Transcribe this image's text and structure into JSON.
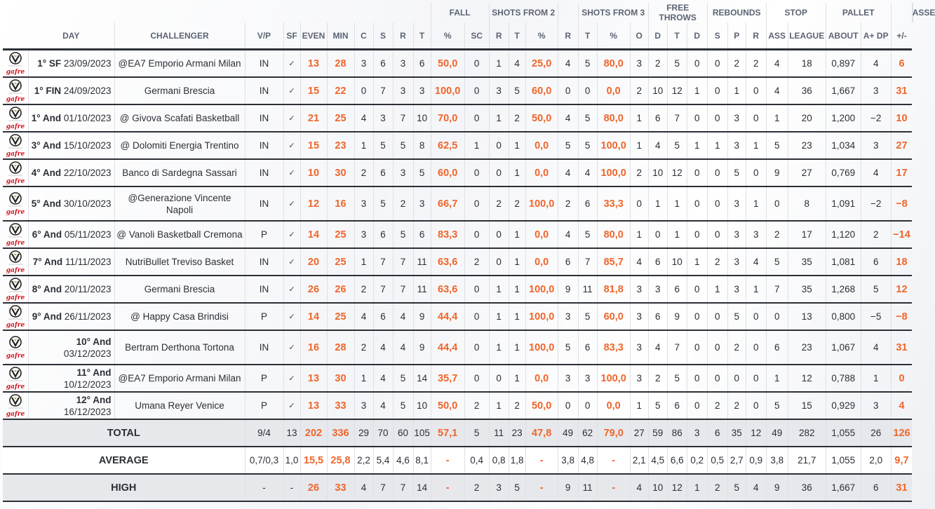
{
  "colors": {
    "accent": "#f0652a",
    "text": "#2b2f36",
    "header": "#5b6473",
    "footer_bg": "#e6e8ec"
  },
  "header": {
    "groups": [
      {
        "label": "",
        "span": 11
      },
      {
        "label": "FALL",
        "span": 2
      },
      {
        "label": "SHOTS FROM 2",
        "span": 3
      },
      {
        "label": "",
        "span": 1
      },
      {
        "label": "SHOTS FROM 3",
        "span": 3
      },
      {
        "label": "FREE THROWS",
        "span": 3
      },
      {
        "label": "REBOUNDS",
        "span": 3
      },
      {
        "label": "STOP",
        "span": 2
      },
      {
        "label": "PALLET",
        "span": 2
      },
      {
        "label": "",
        "span": 1
      },
      {
        "label": "ASSESSMENT",
        "span": 2
      },
      {
        "label": "",
        "span": 2
      }
    ],
    "columns": [
      "",
      "DAY",
      "CHALLENGER",
      "V/P",
      "SF",
      "EVEN",
      "MIN",
      "C",
      "S",
      "R",
      "T",
      "%",
      "SC",
      "R",
      "T",
      "%",
      "R",
      "T",
      "%",
      "O",
      "D",
      "T",
      "D",
      "S",
      "P",
      "R",
      "ASS",
      "LEAGUE",
      "ABOUT",
      "A+ DP",
      "+/-"
    ]
  },
  "logo_icon": "virtus-segafredo-logo",
  "rows": [
    {
      "day": "1° SF",
      "date": "23/09/2023",
      "challenger": "@EA7 Emporio Armani Milan",
      "vp": "IN",
      "sf": "✓",
      "stats": [
        "13",
        "28",
        "3",
        "6",
        "3",
        "6",
        "50,0",
        "0",
        "1",
        "4",
        "25,0",
        "4",
        "5",
        "80,0",
        "3",
        "2",
        "5",
        "0",
        "0",
        "2",
        "2",
        "4",
        "18",
        "0,897",
        "4",
        "6"
      ]
    },
    {
      "day": "1° FIN",
      "date": "24/09/2023",
      "challenger": "Germani Brescia",
      "vp": "IN",
      "sf": "✓",
      "stats": [
        "15",
        "22",
        "0",
        "7",
        "3",
        "3",
        "100,0",
        "0",
        "3",
        "5",
        "60,0",
        "0",
        "0",
        "0,0",
        "2",
        "10",
        "12",
        "1",
        "0",
        "1",
        "0",
        "4",
        "36",
        "1,667",
        "3",
        "31"
      ]
    },
    {
      "day": "1° And",
      "date": "01/10/2023",
      "challenger": "@ Givova Scafati Basketball",
      "vp": "IN",
      "sf": "✓",
      "stats": [
        "21",
        "25",
        "4",
        "3",
        "7",
        "10",
        "70,0",
        "0",
        "1",
        "2",
        "50,0",
        "4",
        "5",
        "80,0",
        "1",
        "6",
        "7",
        "0",
        "0",
        "3",
        "0",
        "1",
        "20",
        "1,200",
        "−2",
        "10"
      ]
    },
    {
      "day": "3° And",
      "date": "15/10/2023",
      "challenger": "@ Dolomiti Energia Trentino",
      "vp": "IN",
      "sf": "✓",
      "stats": [
        "15",
        "23",
        "1",
        "5",
        "5",
        "8",
        "62,5",
        "1",
        "0",
        "1",
        "0,0",
        "5",
        "5",
        "100,0",
        "1",
        "4",
        "5",
        "1",
        "1",
        "3",
        "1",
        "5",
        "23",
        "1,034",
        "3",
        "27"
      ]
    },
    {
      "day": "4° And",
      "date": "22/10/2023",
      "challenger": "Banco di Sardegna Sassari",
      "vp": "IN",
      "sf": "✓",
      "stats": [
        "10",
        "30",
        "2",
        "6",
        "3",
        "5",
        "60,0",
        "0",
        "0",
        "1",
        "0,0",
        "4",
        "4",
        "100,0",
        "2",
        "10",
        "12",
        "0",
        "0",
        "5",
        "0",
        "9",
        "27",
        "0,769",
        "4",
        "17"
      ]
    },
    {
      "day": "5° And",
      "date": "30/10/2023",
      "challenger": "@Generazione Vincente Napoli",
      "vp": "IN",
      "sf": "✓",
      "tall": true,
      "stats": [
        "12",
        "16",
        "3",
        "5",
        "2",
        "3",
        "66,7",
        "0",
        "2",
        "2",
        "100,0",
        "2",
        "6",
        "33,3",
        "0",
        "1",
        "1",
        "0",
        "0",
        "3",
        "1",
        "0",
        "8",
        "1,091",
        "−2",
        "−8"
      ]
    },
    {
      "day": "6° And",
      "date": "05/11/2023",
      "challenger": "@ Vanoli Basketball Cremona",
      "vp": "P",
      "sf": "✓",
      "stats": [
        "14",
        "25",
        "3",
        "6",
        "5",
        "6",
        "83,3",
        "0",
        "0",
        "1",
        "0,0",
        "4",
        "5",
        "80,0",
        "1",
        "0",
        "1",
        "0",
        "0",
        "3",
        "3",
        "2",
        "17",
        "1,120",
        "2",
        "−14"
      ]
    },
    {
      "day": "7° And",
      "date": "11/11/2023",
      "challenger": "NutriBullet Treviso Basket",
      "vp": "IN",
      "sf": "✓",
      "stats": [
        "20",
        "25",
        "1",
        "7",
        "7",
        "11",
        "63,6",
        "2",
        "0",
        "1",
        "0,0",
        "6",
        "7",
        "85,7",
        "4",
        "6",
        "10",
        "1",
        "2",
        "3",
        "4",
        "5",
        "35",
        "1,081",
        "6",
        "18"
      ]
    },
    {
      "day": "8° And",
      "date": "20/11/2023",
      "challenger": "Germani Brescia",
      "vp": "IN",
      "sf": "✓",
      "stats": [
        "26",
        "26",
        "2",
        "7",
        "7",
        "11",
        "63,6",
        "0",
        "1",
        "1",
        "100,0",
        "9",
        "11",
        "81,8",
        "3",
        "3",
        "6",
        "0",
        "1",
        "3",
        "1",
        "7",
        "35",
        "1,268",
        "5",
        "12"
      ]
    },
    {
      "day": "9° And",
      "date": "26/11/2023",
      "challenger": "@ Happy Casa Brindisi",
      "vp": "P",
      "sf": "✓",
      "stats": [
        "14",
        "25",
        "4",
        "6",
        "4",
        "9",
        "44,4",
        "0",
        "1",
        "1",
        "100,0",
        "3",
        "5",
        "60,0",
        "3",
        "6",
        "9",
        "0",
        "0",
        "5",
        "0",
        "0",
        "13",
        "0,800",
        "−5",
        "−8"
      ]
    },
    {
      "day": "10° And",
      "date": "03/12/2023",
      "challenger": "Bertram Derthona Tortona",
      "vp": "IN",
      "sf": "✓",
      "tall": true,
      "stats": [
        "16",
        "28",
        "2",
        "4",
        "4",
        "9",
        "44,4",
        "0",
        "1",
        "1",
        "100,0",
        "5",
        "6",
        "83,3",
        "3",
        "4",
        "7",
        "0",
        "0",
        "2",
        "0",
        "6",
        "23",
        "1,067",
        "4",
        "31"
      ]
    },
    {
      "day": "11° And",
      "date": "10/12/2023",
      "challenger": "@EA7 Emporio Armani Milan",
      "vp": "P",
      "sf": "✓",
      "stats": [
        "13",
        "30",
        "1",
        "4",
        "5",
        "14",
        "35,7",
        "0",
        "0",
        "1",
        "0,0",
        "3",
        "3",
        "100,0",
        "3",
        "2",
        "5",
        "0",
        "0",
        "0",
        "0",
        "1",
        "12",
        "0,788",
        "1",
        "0"
      ]
    },
    {
      "day": "12° And",
      "date": "16/12/2023",
      "challenger": "Umana Reyer Venice",
      "vp": "P",
      "sf": "✓",
      "stats": [
        "13",
        "33",
        "3",
        "4",
        "5",
        "10",
        "50,0",
        "2",
        "1",
        "2",
        "50,0",
        "0",
        "0",
        "0,0",
        "1",
        "5",
        "6",
        "0",
        "2",
        "2",
        "0",
        "5",
        "15",
        "0,929",
        "3",
        "4"
      ]
    }
  ],
  "footer": [
    {
      "label": "TOTAL",
      "vp": "9/4",
      "sf": "13",
      "stats": [
        "202",
        "336",
        "29",
        "70",
        "60",
        "105",
        "57,1",
        "5",
        "11",
        "23",
        "47,8",
        "49",
        "62",
        "79,0",
        "27",
        "59",
        "86",
        "3",
        "6",
        "35",
        "12",
        "49",
        "282",
        "1,055",
        "26",
        "126"
      ]
    },
    {
      "label": "AVERAGE",
      "vp": "0,7/0,3",
      "sf": "1,0",
      "stats": [
        "15,5",
        "25,8",
        "2,2",
        "5,4",
        "4,6",
        "8,1",
        "-",
        "0,4",
        "0,8",
        "1,8",
        "-",
        "3,8",
        "4,8",
        "-",
        "2,1",
        "4,5",
        "6,6",
        "0,2",
        "0,5",
        "2,7",
        "0,9",
        "3,8",
        "21,7",
        "1,055",
        "2,0",
        "9,7"
      ]
    },
    {
      "label": "HIGH",
      "vp": "-",
      "sf": "-",
      "stats": [
        "26",
        "33",
        "4",
        "7",
        "7",
        "14",
        "-",
        "2",
        "3",
        "5",
        "-",
        "9",
        "11",
        "-",
        "4",
        "10",
        "12",
        "1",
        "2",
        "5",
        "4",
        "9",
        "36",
        "1,667",
        "6",
        "31"
      ]
    }
  ]
}
